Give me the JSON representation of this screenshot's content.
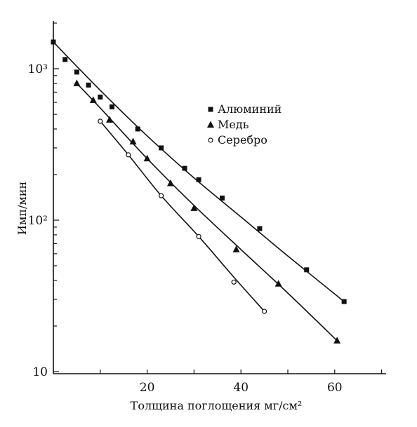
{
  "chart_data": {
    "type": "scatter",
    "title": "",
    "xlabel": "Толщина поглощения мг/см²",
    "ylabel": "Имп/мин",
    "xlim": [
      0,
      70
    ],
    "ylim": [
      10,
      2000
    ],
    "yscale": "log",
    "x_ticks": [
      {
        "value": 20,
        "label": "20"
      },
      {
        "value": 40,
        "label": "40"
      },
      {
        "value": 60,
        "label": "60"
      }
    ],
    "y_ticks": [
      {
        "value": 10,
        "label": "10"
      },
      {
        "value": 100,
        "label": "10²"
      },
      {
        "value": 1000,
        "label": "10³"
      }
    ],
    "grid": false,
    "legend_position": "top-right",
    "series": [
      {
        "name": "Алюминий",
        "marker": "square",
        "x": [
          0,
          2.5,
          5,
          7.5,
          10,
          12.5,
          18,
          23,
          28,
          31,
          36,
          44,
          54,
          62
        ],
        "y": [
          1500,
          1150,
          950,
          780,
          650,
          560,
          400,
          300,
          220,
          185,
          140,
          88,
          47,
          29
        ],
        "curve": {
          "x": [
            0,
            10,
            20,
            30,
            40,
            50,
            62
          ],
          "y": [
            1500,
            720,
            360,
            190,
            105,
            58,
            29
          ]
        }
      },
      {
        "name": "Медь",
        "marker": "triangle",
        "x": [
          5,
          8.5,
          12,
          17,
          20,
          25,
          30,
          39,
          48,
          60.5
        ],
        "y": [
          800,
          620,
          460,
          330,
          255,
          175,
          120,
          64,
          38,
          16
        ],
        "curve": {
          "x": [
            5,
            10,
            20,
            30,
            40,
            50,
            60.5
          ],
          "y": [
            800,
            550,
            255,
            125,
            64,
            33,
            16
          ]
        }
      },
      {
        "name": "Серебро",
        "marker": "circle",
        "x": [
          10,
          16,
          23,
          31,
          38.5,
          45
        ],
        "y": [
          450,
          270,
          145,
          78,
          39,
          25
        ],
        "curve": {
          "x": [
            10,
            16,
            23,
            31,
            38.5,
            45
          ],
          "y": [
            450,
            270,
            145,
            78,
            42,
            25
          ]
        }
      }
    ]
  }
}
